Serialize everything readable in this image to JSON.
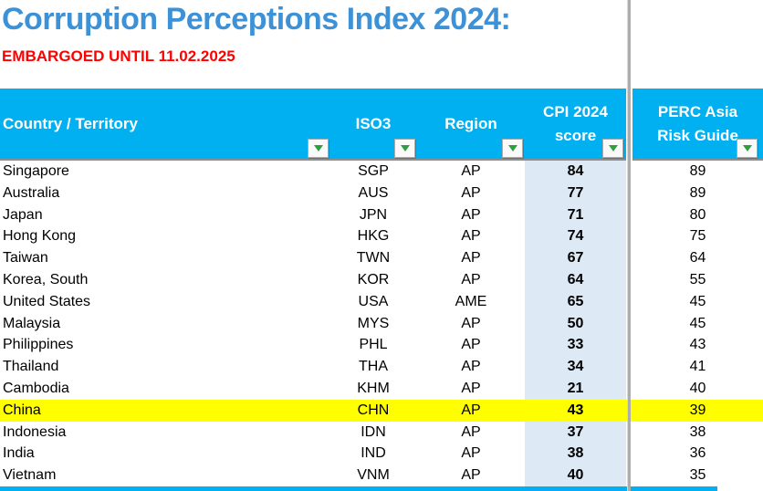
{
  "title": "Corruption Perceptions Index 2024:",
  "embargo": "EMBARGOED UNTIL 11.02.2025",
  "colors": {
    "header_bg": "#00B0F0",
    "title_text": "#3D91D6",
    "embargo_text": "#FF0000",
    "cpi_column_bg": "#DDEAF6",
    "highlight_row_bg": "#FFFF00",
    "filter_arrow": "#2F9E41"
  },
  "table": {
    "columns": [
      {
        "label": "Country / Territory"
      },
      {
        "label": "ISO3"
      },
      {
        "label": "Region"
      },
      {
        "label": "CPI 2024 score",
        "line1": "CPI 2024",
        "line2": "score"
      },
      {
        "label": "PERC Asia Risk Guide",
        "line1": "PERC Asia",
        "line2": "Risk Guide"
      }
    ],
    "filter_icon": "filter-dropdown-arrow",
    "highlighted_country": "China",
    "rows": [
      {
        "country": "Singapore",
        "iso3": "SGP",
        "region": "AP",
        "cpi": "84",
        "perc": "89",
        "highlighted": false
      },
      {
        "country": "Australia",
        "iso3": "AUS",
        "region": "AP",
        "cpi": "77",
        "perc": "89",
        "highlighted": false
      },
      {
        "country": "Japan",
        "iso3": "JPN",
        "region": "AP",
        "cpi": "71",
        "perc": "80",
        "highlighted": false
      },
      {
        "country": "Hong Kong",
        "iso3": "HKG",
        "region": "AP",
        "cpi": "74",
        "perc": "75",
        "highlighted": false
      },
      {
        "country": "Taiwan",
        "iso3": "TWN",
        "region": "AP",
        "cpi": "67",
        "perc": "64",
        "highlighted": false
      },
      {
        "country": "Korea, South",
        "iso3": "KOR",
        "region": "AP",
        "cpi": "64",
        "perc": "55",
        "highlighted": false
      },
      {
        "country": "United States",
        "iso3": "USA",
        "region": "AME",
        "cpi": "65",
        "perc": "45",
        "highlighted": false
      },
      {
        "country": "Malaysia",
        "iso3": "MYS",
        "region": "AP",
        "cpi": "50",
        "perc": "45",
        "highlighted": false
      },
      {
        "country": "Philippines",
        "iso3": "PHL",
        "region": "AP",
        "cpi": "33",
        "perc": "43",
        "highlighted": false
      },
      {
        "country": "Thailand",
        "iso3": "THA",
        "region": "AP",
        "cpi": "34",
        "perc": "41",
        "highlighted": false
      },
      {
        "country": "Cambodia",
        "iso3": "KHM",
        "region": "AP",
        "cpi": "21",
        "perc": "40",
        "highlighted": false
      },
      {
        "country": "China",
        "iso3": "CHN",
        "region": "AP",
        "cpi": "43",
        "perc": "39",
        "highlighted": true
      },
      {
        "country": "Indonesia",
        "iso3": "IDN",
        "region": "AP",
        "cpi": "37",
        "perc": "38",
        "highlighted": false
      },
      {
        "country": "India",
        "iso3": "IND",
        "region": "AP",
        "cpi": "38",
        "perc": "36",
        "highlighted": false
      },
      {
        "country": "Vietnam",
        "iso3": "VNM",
        "region": "AP",
        "cpi": "40",
        "perc": "35",
        "highlighted": false
      }
    ]
  }
}
